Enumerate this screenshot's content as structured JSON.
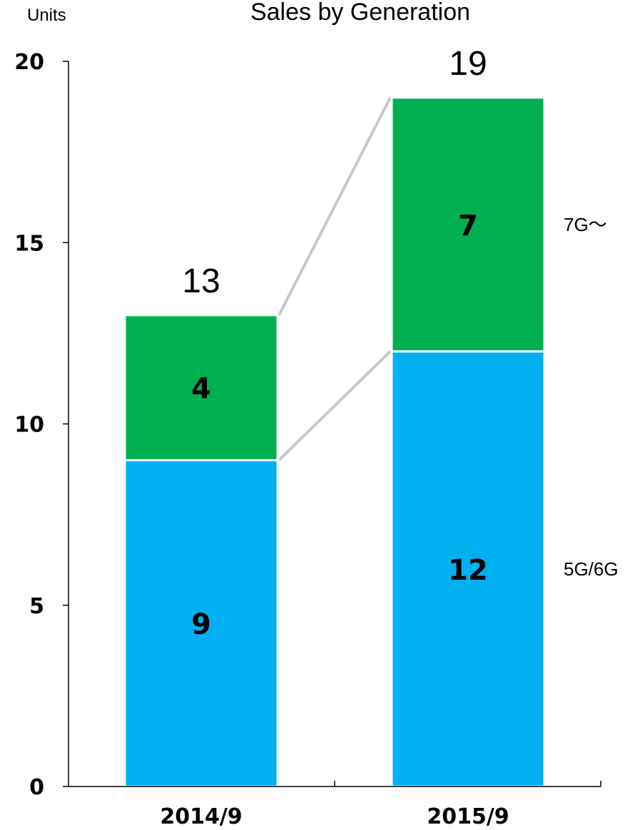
{
  "chart_data": {
    "type": "bar",
    "stacked": true,
    "title": "Sales by Generation",
    "ylabel": "Units",
    "xlabel": "",
    "ylim": [
      0,
      20
    ],
    "yticks": [
      "0",
      "5",
      "10",
      "15",
      "20"
    ],
    "categories": [
      "2014/9",
      "2015/9"
    ],
    "series": [
      {
        "name": "5G/6G",
        "values": [
          9,
          12
        ],
        "color": "#00b0f0"
      },
      {
        "name": "7G～",
        "values": [
          4,
          7
        ],
        "color": "#00b050"
      }
    ],
    "totals": [
      13,
      19
    ],
    "connectors": true,
    "grid": false,
    "legend": "right"
  }
}
